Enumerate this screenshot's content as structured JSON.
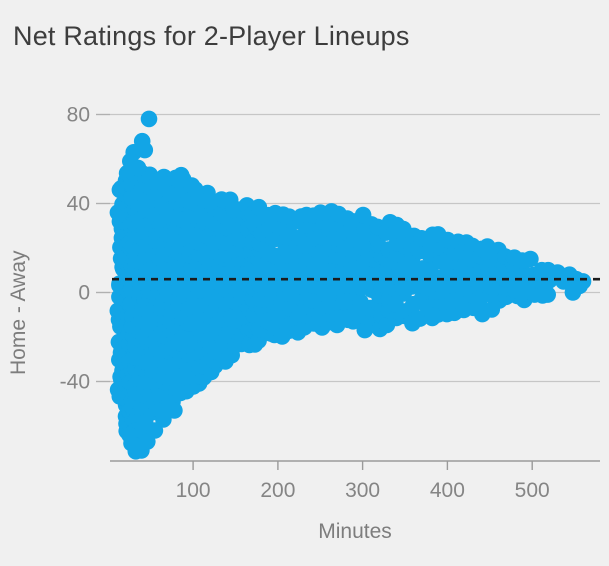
{
  "chart_data": {
    "type": "scatter",
    "title": "Net Ratings for 2-Player Lineups",
    "xlabel": "Minutes",
    "ylabel": "Home - Away",
    "xlim": [
      2,
      580
    ],
    "ylim": [
      -75.7,
      86.5
    ],
    "x_ticks": [
      100,
      200,
      300,
      400,
      500
    ],
    "y_ticks": [
      80,
      40,
      0,
      -40
    ],
    "grid": "horizontal-only",
    "legend": "none",
    "marker": {
      "radius": 8.3,
      "color": "#12a5e6",
      "opacity": 1
    },
    "reference_line": {
      "y": 6,
      "style": "dashed",
      "color": "#1c1c1c"
    },
    "density_band": [
      [
        14,
        -48,
        46
      ],
      [
        18,
        -56,
        50
      ],
      [
        22,
        -62,
        52
      ],
      [
        26,
        -65,
        53
      ],
      [
        30,
        -67,
        52
      ],
      [
        34,
        -70,
        51
      ],
      [
        38,
        -65,
        52
      ],
      [
        42,
        -60,
        53
      ],
      [
        46,
        -57,
        52
      ],
      [
        50,
        -55,
        51
      ],
      [
        55,
        -53,
        50
      ],
      [
        60,
        -52,
        49
      ],
      [
        66,
        -51,
        50
      ],
      [
        72,
        -50,
        49
      ],
      [
        78,
        -48,
        50
      ],
      [
        84,
        -47,
        51
      ],
      [
        90,
        -45,
        52
      ],
      [
        96,
        -44,
        47
      ],
      [
        102,
        -43,
        45
      ],
      [
        108,
        -41,
        44
      ],
      [
        114,
        -39,
        43
      ],
      [
        120,
        -37,
        42
      ],
      [
        127,
        -34,
        41
      ],
      [
        134,
        -31,
        40
      ],
      [
        141,
        -29,
        40
      ],
      [
        148,
        -27,
        39
      ],
      [
        156,
        -25,
        38
      ],
      [
        164,
        -24,
        38
      ],
      [
        172,
        -23,
        37
      ],
      [
        180,
        -22,
        37
      ],
      [
        189,
        -20,
        36
      ],
      [
        198,
        -19,
        36
      ],
      [
        207,
        -18,
        35
      ],
      [
        216,
        -17,
        35
      ],
      [
        225,
        -17,
        34
      ],
      [
        234,
        -16,
        35
      ],
      [
        243,
        -15,
        34
      ],
      [
        252,
        -15,
        35
      ],
      [
        261,
        -14,
        36
      ],
      [
        270,
        -14,
        35
      ],
      [
        280,
        -13,
        34
      ],
      [
        290,
        -14,
        33
      ],
      [
        300,
        -16,
        33
      ],
      [
        310,
        -14,
        31
      ],
      [
        320,
        -15,
        30
      ],
      [
        330,
        -14,
        30
      ],
      [
        340,
        -13,
        29
      ],
      [
        350,
        -11,
        28
      ],
      [
        360,
        -12,
        27
      ],
      [
        370,
        -10,
        26
      ],
      [
        380,
        -10,
        26
      ],
      [
        390,
        -9,
        25
      ],
      [
        400,
        -11,
        24
      ],
      [
        410,
        -9,
        23
      ],
      [
        420,
        -8,
        22
      ],
      [
        430,
        -7,
        21
      ],
      [
        440,
        -8,
        21
      ],
      [
        450,
        -6,
        20
      ],
      [
        460,
        -4,
        19
      ],
      [
        470,
        -3,
        18
      ],
      [
        480,
        -2,
        17
      ],
      [
        490,
        -3,
        15
      ],
      [
        500,
        -1,
        14
      ],
      [
        510,
        0,
        12
      ],
      [
        518,
        -2,
        10
      ]
    ],
    "band_fill": {
      "y_step": 4.4,
      "x_jitter": 6,
      "y_jitter": 4,
      "seed": 987654321
    },
    "outliers": [
      [
        48,
        78
      ],
      [
        40,
        68
      ],
      [
        30,
        63
      ],
      [
        43,
        64
      ],
      [
        26,
        59
      ],
      [
        35,
        56
      ],
      [
        25,
        -64
      ],
      [
        32,
        -69
      ],
      [
        39,
        -71
      ],
      [
        46,
        -67
      ],
      [
        55,
        -62
      ],
      [
        65,
        -57
      ],
      [
        78,
        -53
      ],
      [
        530,
        9
      ],
      [
        537,
        5
      ],
      [
        544,
        8
      ],
      [
        548,
        0
      ],
      [
        552,
        6
      ],
      [
        556,
        3
      ],
      [
        560,
        5
      ]
    ],
    "colors": {
      "background": "#f0f0f0",
      "grid": "#c6c6c6",
      "axis": "#9a9a9a",
      "tick": "#b0b0b0",
      "tick_label": "#858585",
      "title": "#3d3d3d",
      "axis_label": "#7d7d7d"
    }
  }
}
